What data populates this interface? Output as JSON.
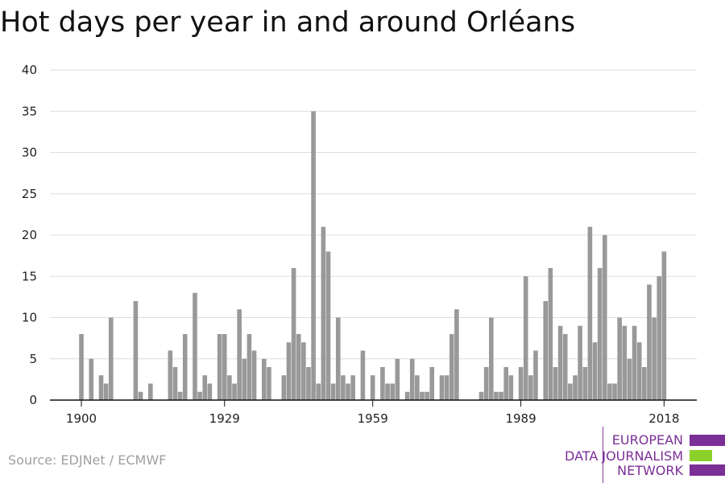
{
  "title": "Hot days per year in and around Orléans",
  "source": "Source: EDJNet / ECMWF",
  "logo": {
    "line1": "EUROPEAN",
    "line2": "DATA JOURNALISM",
    "line3": "NETWORK",
    "colors": {
      "text": "#7b2f97",
      "bar_purple": "#7b2f97",
      "bar_green": "#8cd12b"
    }
  },
  "colors": {
    "bar": "#999999",
    "grid": "#dddddd",
    "axis": "#111111",
    "text": "#222222"
  },
  "chart_data": {
    "type": "bar",
    "title": "Hot days per year in and around Orléans",
    "xlabel": "",
    "ylabel": "",
    "ylim": [
      0,
      40
    ],
    "yticks": [
      0,
      5,
      10,
      15,
      20,
      25,
      30,
      35,
      40
    ],
    "xticks": [
      1900,
      1929,
      1959,
      1989,
      2018
    ],
    "grid": true,
    "x": [
      1900,
      1901,
      1902,
      1903,
      1904,
      1905,
      1906,
      1907,
      1908,
      1909,
      1910,
      1911,
      1912,
      1913,
      1914,
      1915,
      1916,
      1917,
      1918,
      1919,
      1920,
      1921,
      1922,
      1923,
      1924,
      1925,
      1926,
      1927,
      1928,
      1929,
      1930,
      1931,
      1932,
      1933,
      1934,
      1935,
      1936,
      1937,
      1938,
      1939,
      1940,
      1941,
      1942,
      1943,
      1944,
      1945,
      1946,
      1947,
      1948,
      1949,
      1950,
      1951,
      1952,
      1953,
      1954,
      1955,
      1956,
      1957,
      1958,
      1959,
      1960,
      1961,
      1962,
      1963,
      1964,
      1965,
      1966,
      1967,
      1968,
      1969,
      1970,
      1971,
      1972,
      1973,
      1974,
      1975,
      1976,
      1977,
      1978,
      1979,
      1980,
      1981,
      1982,
      1983,
      1984,
      1985,
      1986,
      1987,
      1988,
      1989,
      1990,
      1991,
      1992,
      1993,
      1994,
      1995,
      1996,
      1997,
      1998,
      1999,
      2000,
      2001,
      2002,
      2003,
      2004,
      2005,
      2006,
      2007,
      2008,
      2009,
      2010,
      2011,
      2012,
      2013,
      2014,
      2015,
      2016,
      2017,
      2018
    ],
    "values": [
      8,
      0,
      5,
      0,
      3,
      2,
      10,
      0,
      0,
      0,
      0,
      12,
      1,
      0,
      2,
      0,
      0,
      0,
      6,
      4,
      1,
      8,
      0,
      13,
      1,
      3,
      2,
      0,
      8,
      8,
      3,
      2,
      11,
      5,
      8,
      6,
      0,
      5,
      4,
      0,
      0,
      3,
      7,
      16,
      8,
      7,
      4,
      35,
      2,
      21,
      18,
      2,
      10,
      3,
      2,
      3,
      0,
      6,
      0,
      3,
      0,
      4,
      2,
      2,
      5,
      0,
      1,
      5,
      3,
      1,
      1,
      4,
      0,
      3,
      3,
      8,
      11,
      0,
      0,
      0,
      0,
      1,
      4,
      10,
      1,
      1,
      4,
      3,
      0,
      4,
      15,
      3,
      6,
      0,
      12,
      16,
      4,
      9,
      8,
      2,
      3,
      9,
      4,
      21,
      7,
      16,
      20,
      2,
      2,
      10,
      9,
      5,
      9,
      7,
      4,
      14,
      10,
      15,
      18
    ]
  }
}
